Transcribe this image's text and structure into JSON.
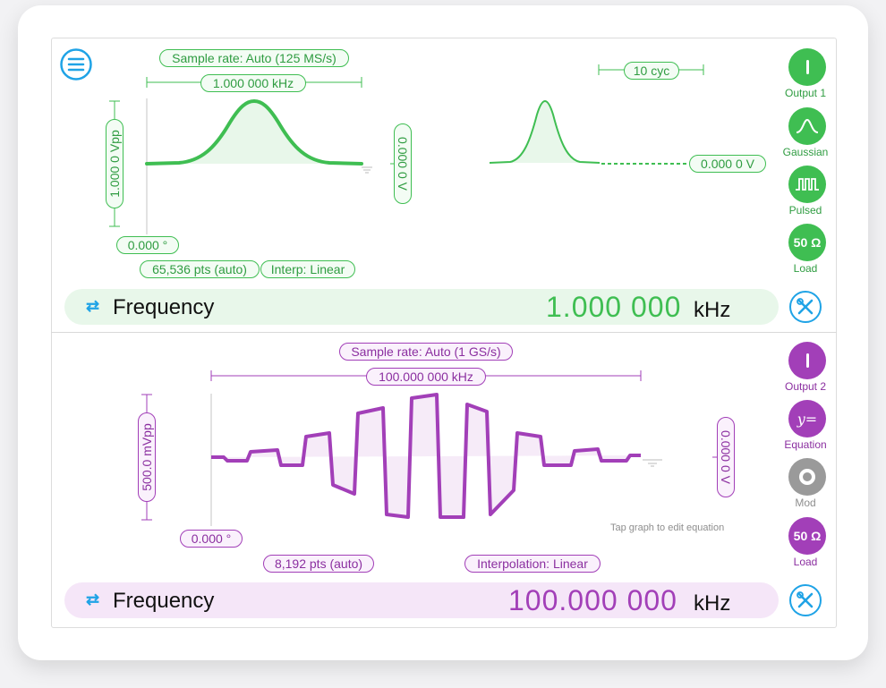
{
  "menu": {
    "icon": "hamburger-menu-icon"
  },
  "channel1": {
    "color": "#3fbe52",
    "sample_rate": "Sample rate: Auto (125 MS/s)",
    "span_freq": "1.000 000 kHz",
    "amplitude": "1.000 0 Vpp",
    "offset": "0.000 0 V",
    "phase": "0.000 °",
    "points": "65,536 pts (auto)",
    "interp": "Interp: Linear",
    "cycles": "10 cyc",
    "idle_level": "0.000 0 V",
    "output_label": "Output 1",
    "waveform_label": "Gaussian",
    "mode_label": "Pulsed",
    "load_value": "50 Ω",
    "load_label": "Load",
    "freq_label": "Frequency",
    "freq_value": "1.000 000",
    "freq_unit": "kHz"
  },
  "channel2": {
    "color": "#a23fb8",
    "sample_rate": "Sample rate: Auto (1 GS/s)",
    "span_freq": "100.000 000 kHz",
    "amplitude": "500.0 mVpp",
    "offset": "0.000 0 V",
    "phase": "0.000 °",
    "points": "8,192 pts (auto)",
    "interp": "Interpolation: Linear",
    "hint": "Tap graph to edit equation",
    "output_label": "Output 2",
    "waveform_label": "Equation",
    "mode_label": "Mod",
    "load_value": "50 Ω",
    "load_label": "Load",
    "freq_label": "Frequency",
    "freq_value": "100.000 000",
    "freq_unit": "kHz"
  }
}
